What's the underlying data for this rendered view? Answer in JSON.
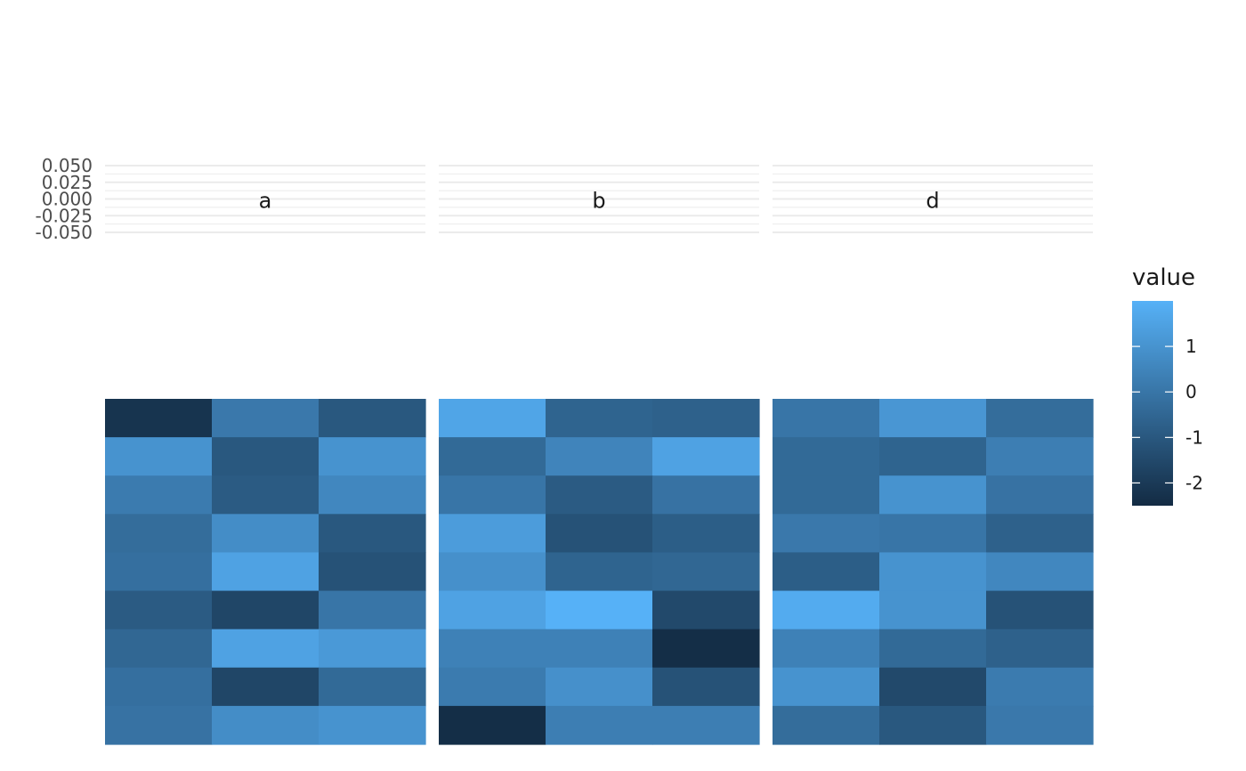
{
  "chart_data": {
    "type": "heatmap",
    "title": "",
    "xlabel": "",
    "ylabel": "",
    "facets": [
      {
        "label": "a",
        "rows": [
          [
            -2.2,
            0.1,
            -1.0
          ],
          [
            1.0,
            -1.0,
            1.0
          ],
          [
            0.2,
            -0.9,
            0.6
          ],
          [
            -0.3,
            0.8,
            -1.0
          ],
          [
            -0.2,
            1.5,
            -1.2
          ],
          [
            -0.9,
            -1.6,
            0.0
          ],
          [
            -0.5,
            1.5,
            1.2
          ],
          [
            -0.2,
            -1.6,
            -0.4
          ],
          [
            -0.1,
            0.8,
            1.0
          ]
        ]
      },
      {
        "label": "b",
        "rows": [
          [
            1.6,
            -0.6,
            -0.7
          ],
          [
            -0.4,
            0.5,
            1.5
          ],
          [
            0.0,
            -0.9,
            -0.1
          ],
          [
            1.3,
            -1.2,
            -0.8
          ],
          [
            0.9,
            -0.6,
            -0.5
          ],
          [
            1.5,
            2.0,
            -1.5
          ],
          [
            0.4,
            0.4,
            -2.4
          ],
          [
            0.2,
            0.9,
            -1.2
          ],
          [
            -2.4,
            0.3,
            0.3
          ]
        ]
      },
      {
        "label": "d",
        "rows": [
          [
            0.0,
            1.1,
            -0.3
          ],
          [
            -0.4,
            -0.6,
            0.3
          ],
          [
            -0.4,
            1.0,
            -0.1
          ],
          [
            0.1,
            0.0,
            -0.7
          ],
          [
            -0.8,
            1.0,
            0.6
          ],
          [
            1.8,
            1.0,
            -1.2
          ],
          [
            0.4,
            -0.4,
            -0.7
          ],
          [
            1.0,
            -1.5,
            0.2
          ],
          [
            -0.3,
            -1.0,
            0.1
          ]
        ]
      }
    ],
    "strip_y_ticks": [
      "0.050",
      "0.025",
      "0.000",
      "-0.025",
      "-0.050"
    ],
    "strip_ylim": [
      -0.05,
      0.05
    ],
    "legend": {
      "title": "value",
      "ticks": [
        {
          "value": 1,
          "label": "1"
        },
        {
          "value": 0,
          "label": "0"
        },
        {
          "value": -1,
          "label": "-1"
        },
        {
          "value": -2,
          "label": "-2"
        }
      ],
      "range": [
        -2.5,
        2.0
      ],
      "low_color": "#132B43",
      "high_color": "#56B1F7",
      "placement": "right"
    },
    "grid": true,
    "grid_color": "#ebebeb"
  }
}
